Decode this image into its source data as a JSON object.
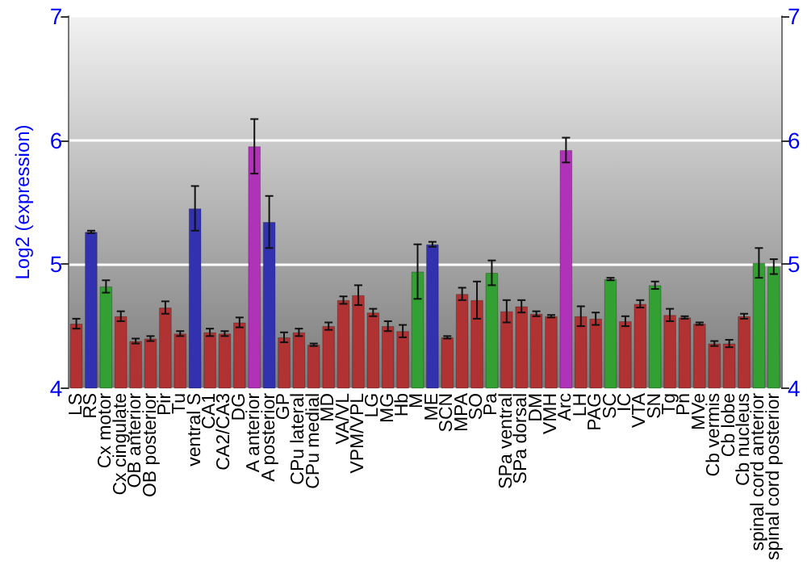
{
  "chart_data": {
    "type": "bar",
    "ylabel": "Log2 (expression)",
    "categories": [
      "LS",
      "RS",
      "Cx motor",
      "Cx cingulate",
      "OB anterior",
      "OB posterior",
      "Pir",
      "Tu",
      "ventral S",
      "CA1",
      "CA2/CA3",
      "DG",
      "A anterior",
      "A posterior",
      "GP",
      "CPu lateral",
      "CPu medial",
      "MD",
      "VA/VL",
      "VPM/VPL",
      "LG",
      "MG",
      "Hb",
      "M",
      "ME",
      "SCN",
      "MPA",
      "SO",
      "Pa",
      "SPa ventral",
      "SPa dorsal",
      "DM",
      "VMH",
      "Arc",
      "LH",
      "PAG",
      "SC",
      "IC",
      "VTA",
      "SN",
      "Tg",
      "Pn",
      "MVe",
      "Cb vermis",
      "Cb lobe",
      "Cb nucleus",
      "spinal cord anterior",
      "spinal cord posterior"
    ],
    "values": [
      4.52,
      5.26,
      4.82,
      4.58,
      4.38,
      4.4,
      4.65,
      4.44,
      5.45,
      4.45,
      4.44,
      4.53,
      5.95,
      5.34,
      4.41,
      4.45,
      4.35,
      4.5,
      4.71,
      4.75,
      4.61,
      4.5,
      4.46,
      4.94,
      5.16,
      4.41,
      4.76,
      4.71,
      4.93,
      4.62,
      4.66,
      4.6,
      4.58,
      5.92,
      4.58,
      4.56,
      4.88,
      4.54,
      4.68,
      4.83,
      4.59,
      4.57,
      4.52,
      4.36,
      4.36,
      4.58,
      5.01,
      4.98
    ],
    "errors": [
      0.04,
      0.01,
      0.05,
      0.04,
      0.02,
      0.02,
      0.05,
      0.02,
      0.18,
      0.03,
      0.02,
      0.04,
      0.22,
      0.21,
      0.04,
      0.03,
      0.01,
      0.03,
      0.03,
      0.08,
      0.03,
      0.04,
      0.05,
      0.22,
      0.02,
      0.01,
      0.05,
      0.15,
      0.1,
      0.09,
      0.05,
      0.02,
      0.01,
      0.1,
      0.08,
      0.05,
      0.01,
      0.04,
      0.03,
      0.03,
      0.05,
      0.01,
      0.01,
      0.02,
      0.03,
      0.02,
      0.12,
      0.06
    ],
    "colors": [
      "#b03232",
      "#3232b0",
      "#32a032",
      "#b03232",
      "#b03232",
      "#b03232",
      "#b03232",
      "#b03232",
      "#3232b0",
      "#b03232",
      "#b03232",
      "#b03232",
      "#b032b8",
      "#3232b0",
      "#b03232",
      "#b03232",
      "#b03232",
      "#b03232",
      "#b03232",
      "#b03232",
      "#b03232",
      "#b03232",
      "#b03232",
      "#32a032",
      "#3232b0",
      "#b03232",
      "#b03232",
      "#b03232",
      "#32a032",
      "#b03232",
      "#b03232",
      "#b03232",
      "#b03232",
      "#b032b8",
      "#b03232",
      "#b03232",
      "#32a032",
      "#b03232",
      "#b03232",
      "#32a032",
      "#b03232",
      "#b03232",
      "#b03232",
      "#b03232",
      "#b03232",
      "#b03232",
      "#32a032",
      "#32a032"
    ],
    "ylim": [
      4,
      7
    ],
    "yticks": [
      4,
      5,
      6,
      7
    ],
    "y2lim": [
      4,
      7
    ],
    "y2ticks": [
      4,
      5,
      6,
      7
    ],
    "grid": "y"
  }
}
